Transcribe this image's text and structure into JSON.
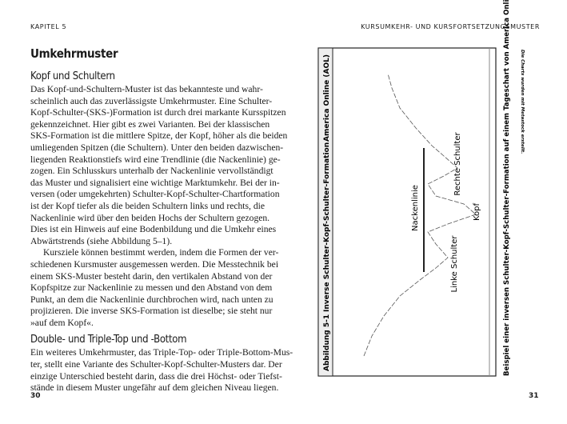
{
  "header": {
    "left": "KAPITEL 5",
    "right": "KURSUMKEHR- UND KURSFORTSETZUNGSMUSTER"
  },
  "section": {
    "title": "Umkehrmuster",
    "subsections": [
      {
        "title": "Kopf und Schultern",
        "paragraphs": [
          [
            "Das Kopf-und-Schultern-Muster ist das bekannteste und wahr-",
            "scheinlich auch das zuverlässigste Umkehrmuster. Eine Schulter-",
            "Kopf-Schulter-(SKS-)Formation ist durch drei markante Kursspitzen",
            "gekennzeichnet. Hier gibt es zwei Varianten. Bei der klassischen",
            "SKS-Formation ist die mittlere Spitze, der Kopf, höher als die beiden",
            "umliegenden Spitzen (die Schultern). Unter den beiden dazwischen-",
            "liegenden Reaktionstiefs wird eine Trendlinie (die Nackenlinie) ge-",
            "zogen. Ein Schlusskurs unterhalb der Nackenlinie vervollständigt",
            "das Muster und signalisiert eine wichtige Marktumkehr. Bei der in-",
            "versen (oder umgekehrten) Schulter-Kopf-Schulter-Chartformation",
            "ist der Kopf tiefer als die beiden Schultern links und rechts, die",
            "Nackenlinie wird über den beiden Hochs der Schultern gezogen.",
            "Dies ist ein Hinweis auf eine Bodenbildung und die Umkehr eines",
            "Abwärtstrends (siehe Abbildung 5–1)."
          ],
          [
            "Kursziele können bestimmt werden, indem die Formen der ver-",
            "schiedenen Kursmuster ausgemessen werden. Die Messtechnik bei",
            "einem SKS-Muster besteht darin, den vertikalen Abstand von der",
            "Kopfspitze zur Nackenlinie zu messen und den Abstand von dem",
            "Punkt, an dem die Nackenlinie durchbrochen wird, nach unten zu",
            "projizieren. Die inverse SKS-Formation ist dieselbe; sie steht nur",
            "»auf dem Kopf«."
          ]
        ]
      },
      {
        "title": "Double- und Triple-Top und -Bottom",
        "paragraphs": [
          [
            "Ein weiteres Umkehrmuster, das Triple-Top- oder Triple-Bottom-Mus-",
            "ter, stellt eine Variante des Schulter-Kopf-Schulter-Musters dar. Der",
            "einzige Unterschied besteht darin, dass die drei Höchst- oder Tiefst-",
            "stände in diesem Muster ungefähr auf dem gleichen Niveau liegen."
          ]
        ]
      }
    ]
  },
  "figure": {
    "label": "Abbildung 5-1",
    "title": "Inverse Schulter-Kopf-Schulter-Formation",
    "ticker": "America Online (AOL)",
    "annotations": [
      "Nackenlinie",
      "Rechte Schulter",
      "Kopf",
      "Linke Schulter"
    ],
    "caption": "Beispiel einer inversen Schulter-Kopf-Schulter-Formation auf einem Tageschart von America Online (AOL)",
    "note": "Die Charts wurden mit Metastock erstellt."
  },
  "page_numbers": [
    "30",
    "31"
  ]
}
